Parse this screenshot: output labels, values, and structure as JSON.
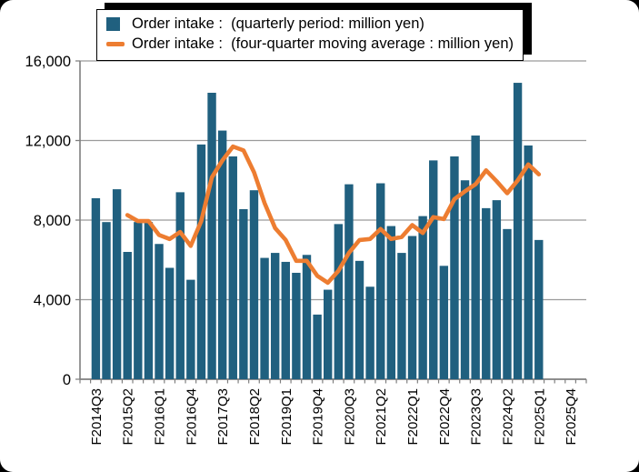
{
  "colors": {
    "bar": "#20607F",
    "line": "#ED7D31",
    "grid": "#9B9B9B",
    "axis": "#7F7F7F",
    "text": "#000000",
    "legend_border": "#000000",
    "background": "#FFFFFF"
  },
  "legend": {
    "items": [
      {
        "swatch": "bar",
        "label": "Order intake :  (quarterly period: million yen)"
      },
      {
        "swatch": "line",
        "label": "Order intake :  (four-quarter moving average : million yen)"
      }
    ]
  },
  "chart_data": {
    "type": "bar",
    "title": "",
    "xlabel": "",
    "ylabel": "",
    "ylim": [
      0,
      16000
    ],
    "grid": true,
    "legend_position": "top",
    "label_every": 3,
    "yticks": [
      {
        "value": 0,
        "label": "0"
      },
      {
        "value": 4000,
        "label": "4,000"
      },
      {
        "value": 8000,
        "label": "8,000"
      },
      {
        "value": 12000,
        "label": "12,000"
      },
      {
        "value": 16000,
        "label": "16,000"
      }
    ],
    "categories": [
      "F2014Q3",
      "F2014Q4",
      "F2015Q1",
      "F2015Q2",
      "F2015Q3",
      "F2015Q4",
      "F2016Q1",
      "F2016Q2",
      "F2016Q3",
      "F2016Q4",
      "F2017Q1",
      "F2017Q2",
      "F2017Q3",
      "F2017Q4",
      "F2018Q1",
      "F2018Q2",
      "F2018Q3",
      "F2018Q4",
      "F2019Q1",
      "F2019Q2",
      "F2019Q3",
      "F2019Q4",
      "F2020Q1",
      "F2020Q2",
      "F2020Q3",
      "F2020Q4",
      "F2021Q1",
      "F2021Q2",
      "F2021Q3",
      "F2021Q4",
      "F2022Q1",
      "F2022Q2",
      "F2022Q3",
      "F2022Q4",
      "F2023Q1",
      "F2023Q2",
      "F2023Q3",
      "F2023Q4",
      "F2024Q1",
      "F2024Q2",
      "F2024Q3",
      "F2024Q4",
      "F2025Q1",
      "F2025Q2",
      "F2025Q3",
      "F2025Q4"
    ],
    "series": [
      {
        "name": "Order intake :  (quarterly period: million yen)",
        "type": "bar",
        "values": [
          9100,
          7900,
          9550,
          6400,
          7900,
          7900,
          6800,
          5600,
          9400,
          5000,
          11800,
          14400,
          12500,
          11200,
          8550,
          9500,
          6100,
          6350,
          5900,
          5350,
          6250,
          3250,
          4500,
          7800,
          9800,
          5950,
          4650,
          9850,
          7700,
          6350,
          7200,
          8200,
          11000,
          5700,
          11200,
          10000,
          12250,
          8600,
          9000,
          7550,
          14900,
          11750,
          7000,
          null,
          null,
          null
        ]
      },
      {
        "name": "Order intake :  (four-quarter moving average : million yen)",
        "type": "line",
        "values": [
          null,
          null,
          null,
          8250,
          7950,
          7950,
          7250,
          7050,
          7400,
          6700,
          7950,
          10150,
          11000,
          11700,
          11500,
          10400,
          8850,
          7600,
          7000,
          5950,
          5950,
          5200,
          4850,
          5450,
          6350,
          7000,
          7050,
          7550,
          7050,
          7150,
          7750,
          7350,
          8150,
          8050,
          9050,
          9450,
          9800,
          10500,
          9950,
          9350,
          10000,
          10800,
          10300,
          null,
          null,
          null
        ]
      }
    ]
  }
}
